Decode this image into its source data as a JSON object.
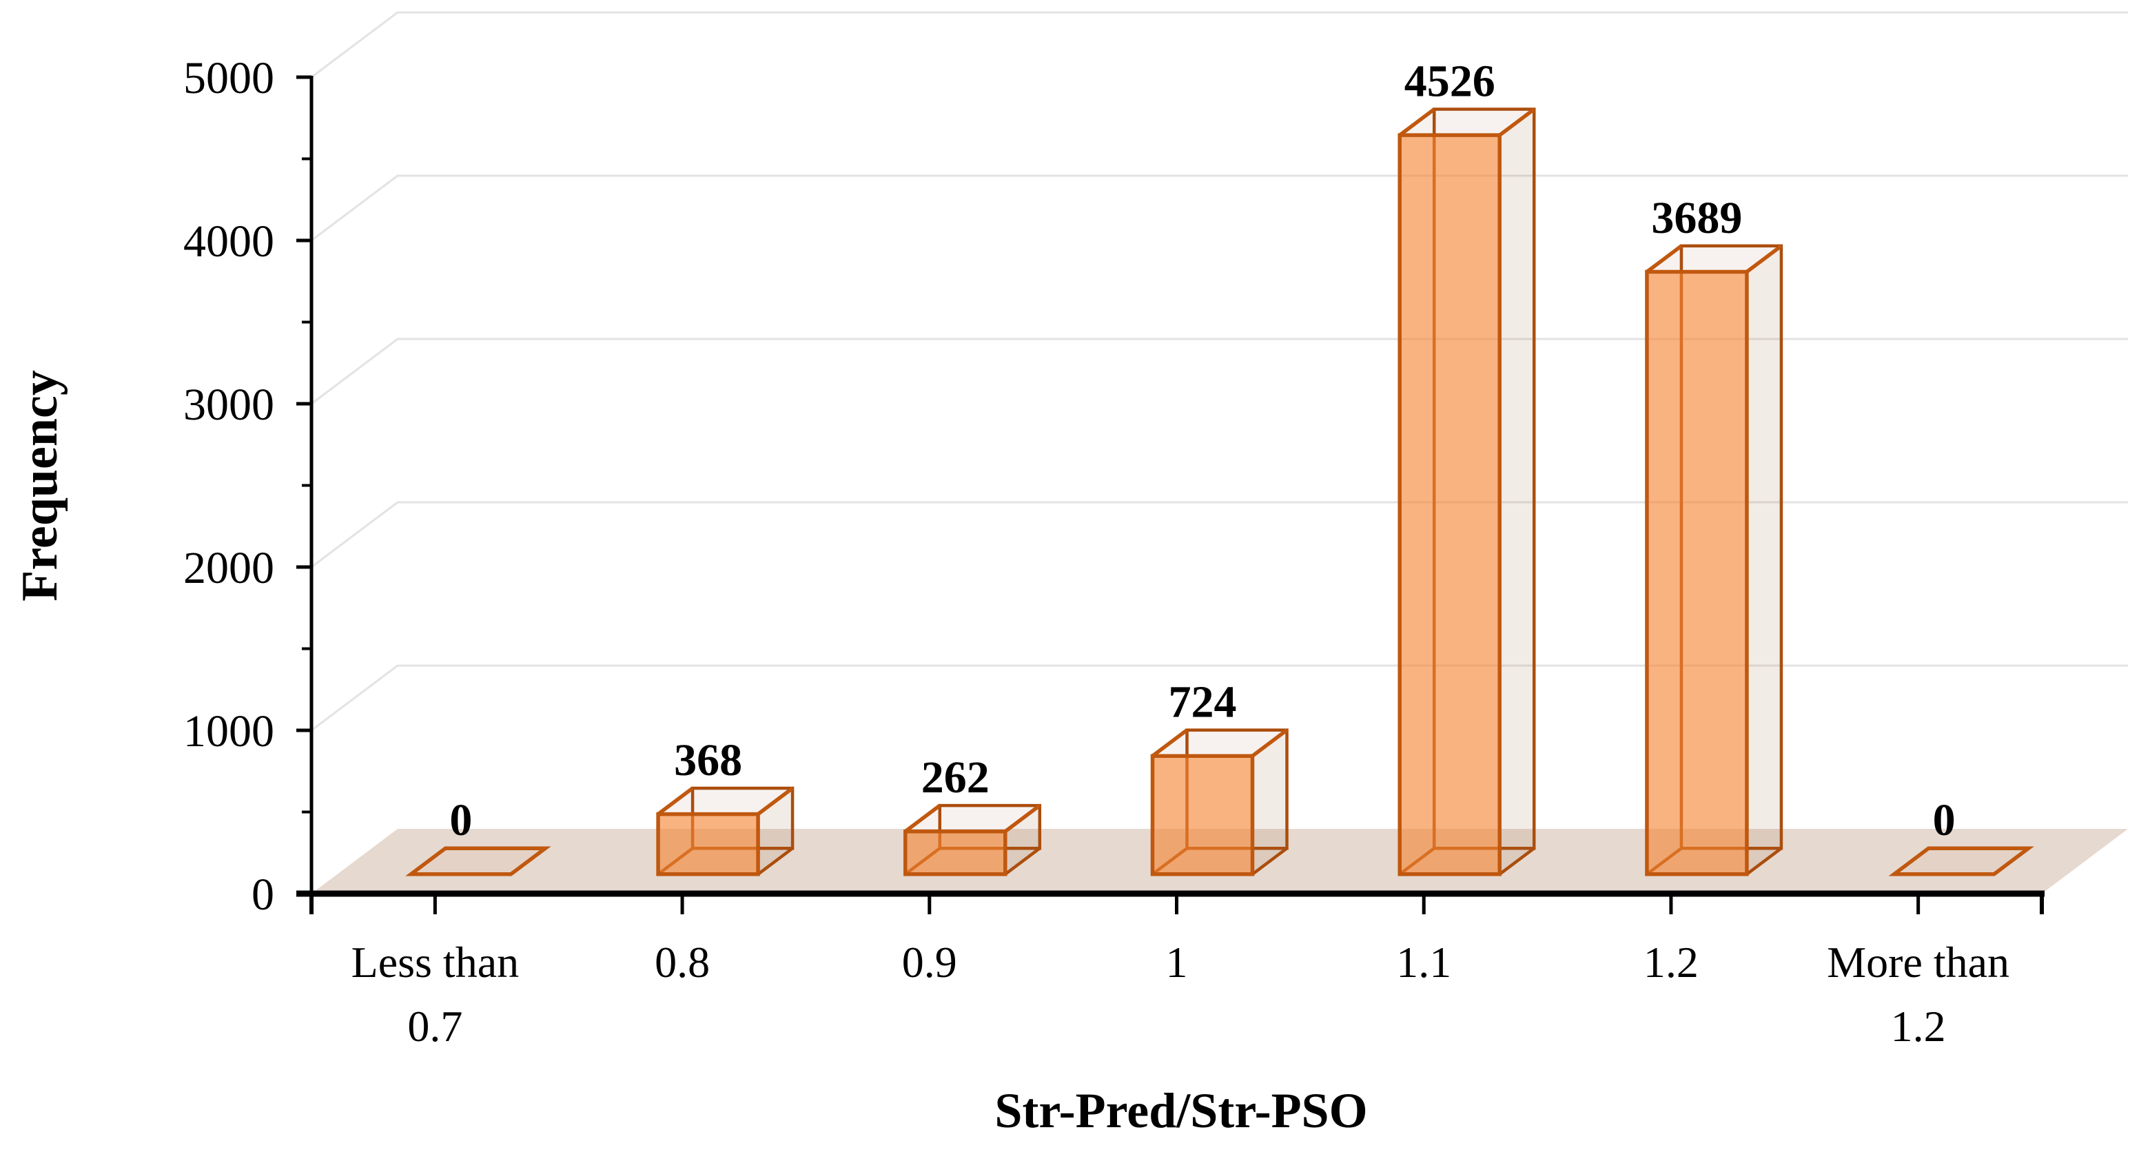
{
  "chart_data": {
    "type": "bar",
    "style": "3d-box-wireframe",
    "title": "",
    "xlabel": "Str-Pred/Str-PSO",
    "ylabel": "Frequency",
    "categories": [
      "Less than 0.7",
      "0.8",
      "0.9",
      "1",
      "1.1",
      "1.2",
      "More than 1.2"
    ],
    "category_lines": [
      [
        "Less than",
        "0.7"
      ],
      [
        "0.8"
      ],
      [
        "0.9"
      ],
      [
        "1"
      ],
      [
        "1.1"
      ],
      [
        "1.2"
      ],
      [
        "More than",
        "1.2"
      ]
    ],
    "values": [
      0,
      368,
      262,
      724,
      4526,
      3689,
      0
    ],
    "data_labels": [
      "0",
      "368",
      "262",
      "724",
      "4526",
      "3689",
      "0"
    ],
    "ylim": [
      0,
      5000
    ],
    "y_major_step": 1000,
    "y_minor_step": 500,
    "y_tick_labels": [
      "0",
      "1000",
      "2000",
      "3000",
      "4000",
      "5000"
    ],
    "grid": "major-horizontal-backwall",
    "legend": false,
    "colors": {
      "bar_front": "rgba(243,133,51,0.62)",
      "bar_top": "rgba(150,95,60,0.08)",
      "bar_side": "rgba(150,95,60,0.12)",
      "edge_visible": "#C0580F",
      "edge_hidden": "#AD4D0A",
      "zero_marker_fill": "rgba(197,90,17,0.05)",
      "floor": "#E6D9D0",
      "gridline": "#E4E2E2",
      "axis": "#000000",
      "text": "#000000",
      "background": "#FFFFFF"
    }
  }
}
